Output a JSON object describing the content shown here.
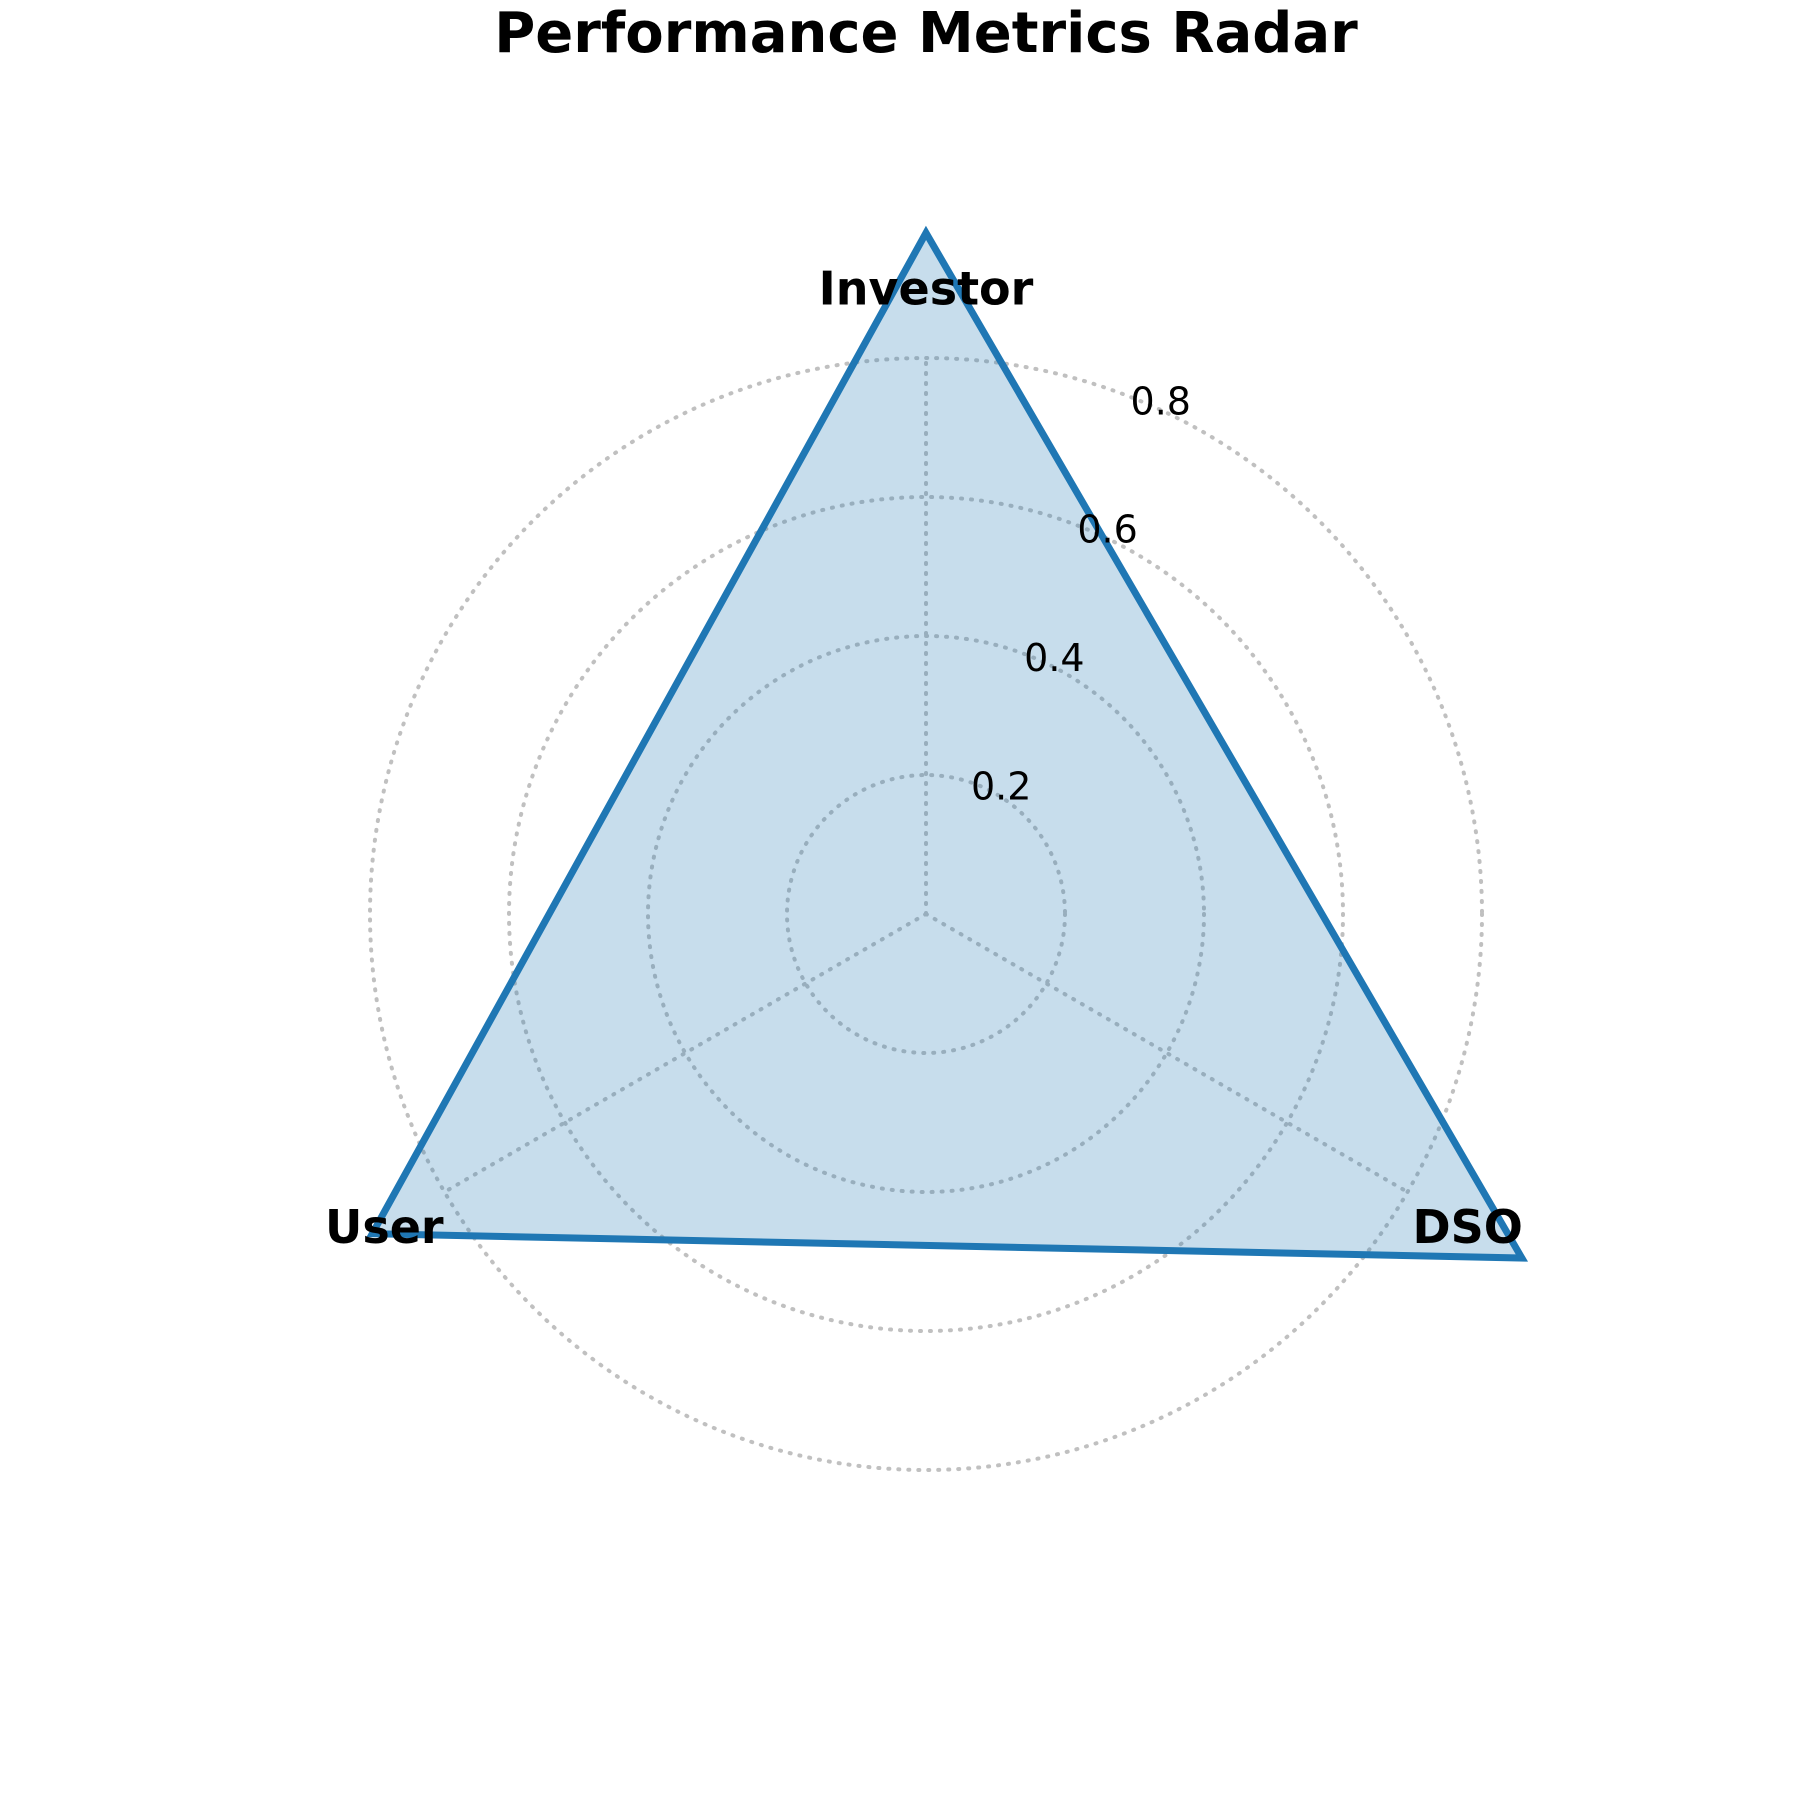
{
  "chart_data": {
    "type": "radar",
    "title": "Performance Metrics Radar",
    "categories": [
      "Investor",
      "DSO",
      "User"
    ],
    "series": [
      {
        "values": [
          0.98,
          0.99,
          0.92
        ]
      }
    ],
    "rticks": [
      0.2,
      0.4,
      0.6,
      0.8
    ],
    "rtick_labels": [
      "0.2",
      "0.4",
      "0.6",
      "0.8"
    ],
    "rlim": [
      0,
      0.8
    ],
    "grid": true,
    "legend": "none",
    "colors": {
      "line": "#1f77b4",
      "fill": "#1f77b4",
      "grid": "#c0c0c0"
    }
  }
}
